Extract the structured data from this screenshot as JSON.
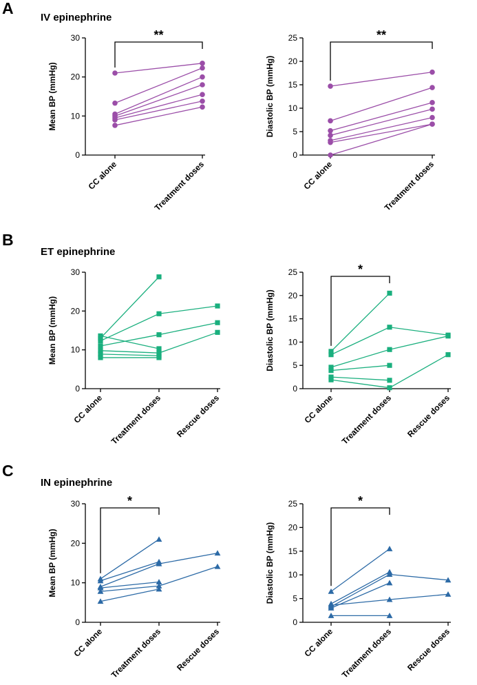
{
  "panels": [
    {
      "letter": "A",
      "title": "IV epinephrine"
    },
    {
      "letter": "B",
      "title": "ET epinephrine"
    },
    {
      "letter": "C",
      "title": "IN epinephrine"
    }
  ],
  "chart_data": [
    {
      "type": "line",
      "panel": "A",
      "title": "IV epinephrine",
      "xlabel": "",
      "ylabel": "Mean BP (mmHg)",
      "ylim": [
        0,
        30
      ],
      "yticks": [
        0,
        10,
        20,
        30
      ],
      "categories": [
        "CC alone",
        "Treatment doses"
      ],
      "color": "#9b4ea8",
      "marker": "circle",
      "series": [
        {
          "name": "1",
          "values": [
            21.0,
            23.5
          ]
        },
        {
          "name": "2",
          "values": [
            13.3,
            22.3
          ]
        },
        {
          "name": "3",
          "values": [
            10.5,
            20.0
          ]
        },
        {
          "name": "4",
          "values": [
            10.0,
            18.0
          ]
        },
        {
          "name": "5",
          "values": [
            9.5,
            15.5
          ]
        },
        {
          "name": "6",
          "values": [
            9.0,
            13.8
          ]
        },
        {
          "name": "7",
          "values": [
            7.6,
            12.3
          ]
        }
      ],
      "significance": {
        "label": "**",
        "from": 0,
        "to": 1
      }
    },
    {
      "type": "line",
      "panel": "A",
      "title": "IV epinephrine",
      "xlabel": "",
      "ylabel": "Diastolic BP (mmHg)",
      "ylim": [
        0,
        25
      ],
      "yticks": [
        0,
        5,
        10,
        15,
        20,
        25
      ],
      "categories": [
        "CC alone",
        "Treatment doses"
      ],
      "color": "#9b4ea8",
      "marker": "circle",
      "series": [
        {
          "name": "1",
          "values": [
            14.7,
            17.7
          ]
        },
        {
          "name": "2",
          "values": [
            7.3,
            14.4
          ]
        },
        {
          "name": "3",
          "values": [
            5.2,
            11.2
          ]
        },
        {
          "name": "4",
          "values": [
            4.2,
            9.8
          ]
        },
        {
          "name": "5",
          "values": [
            3.1,
            8.0
          ]
        },
        {
          "name": "6",
          "values": [
            2.7,
            6.6
          ]
        },
        {
          "name": "7",
          "values": [
            0.0,
            6.6
          ]
        }
      ],
      "significance": {
        "label": "**",
        "from": 0,
        "to": 1
      }
    },
    {
      "type": "line",
      "panel": "B",
      "title": "ET epinephrine",
      "xlabel": "",
      "ylabel": "Mean BP (mmHg)",
      "ylim": [
        0,
        30
      ],
      "yticks": [
        0,
        10,
        20,
        30
      ],
      "categories": [
        "CC alone",
        "Treatment doses",
        "Rescue doses"
      ],
      "color": "#1aaf7e",
      "marker": "square",
      "series": [
        {
          "name": "1",
          "values": [
            13.0,
            28.8,
            null
          ]
        },
        {
          "name": "2",
          "values": [
            12.3,
            19.3,
            21.3
          ]
        },
        {
          "name": "3",
          "values": [
            11.0,
            13.9,
            17.0
          ]
        },
        {
          "name": "4",
          "values": [
            13.6,
            10.3,
            null
          ]
        },
        {
          "name": "5",
          "values": [
            9.8,
            9.2,
            14.5
          ]
        },
        {
          "name": "6",
          "values": [
            8.9,
            8.5,
            null
          ]
        },
        {
          "name": "7",
          "values": [
            8.0,
            8.0,
            null
          ]
        }
      ],
      "significance": null
    },
    {
      "type": "line",
      "panel": "B",
      "title": "ET epinephrine",
      "xlabel": "",
      "ylabel": "Diastolic BP (mmHg)",
      "ylim": [
        0,
        25
      ],
      "yticks": [
        0,
        5,
        10,
        15,
        20,
        25
      ],
      "categories": [
        "CC alone",
        "Treatment doses",
        "Rescue doses"
      ],
      "color": "#1aaf7e",
      "marker": "square",
      "series": [
        {
          "name": "1",
          "values": [
            8.0,
            20.5,
            null
          ]
        },
        {
          "name": "2",
          "values": [
            7.3,
            13.2,
            11.5
          ]
        },
        {
          "name": "3",
          "values": [
            4.6,
            8.4,
            11.3
          ]
        },
        {
          "name": "4",
          "values": [
            3.9,
            5.0,
            null
          ]
        },
        {
          "name": "5",
          "values": [
            2.5,
            1.8,
            null
          ]
        },
        {
          "name": "6",
          "values": [
            1.9,
            0.2,
            7.3
          ]
        }
      ],
      "significance": {
        "label": "*",
        "from": 0,
        "to": 1
      }
    },
    {
      "type": "line",
      "panel": "C",
      "title": "IN epinephrine",
      "xlabel": "",
      "ylabel": "Mean BP (mmHg)",
      "ylim": [
        0,
        30
      ],
      "yticks": [
        0,
        10,
        20,
        30
      ],
      "categories": [
        "CC alone",
        "Treatment doses",
        "Rescue doses"
      ],
      "color": "#2c6aa6",
      "marker": "triangle",
      "series": [
        {
          "name": "1",
          "values": [
            11.0,
            21.0,
            null
          ]
        },
        {
          "name": "2",
          "values": [
            10.5,
            15.3,
            null
          ]
        },
        {
          "name": "3",
          "values": [
            9.0,
            14.8,
            17.5
          ]
        },
        {
          "name": "4",
          "values": [
            8.7,
            10.2,
            null
          ]
        },
        {
          "name": "5",
          "values": [
            7.8,
            9.2,
            14.1
          ]
        },
        {
          "name": "6",
          "values": [
            5.3,
            8.4,
            null
          ]
        }
      ],
      "significance": {
        "label": "*",
        "from": 0,
        "to": 1
      }
    },
    {
      "type": "line",
      "panel": "C",
      "title": "IN epinephrine",
      "xlabel": "",
      "ylabel": "Diastolic BP (mmHg)",
      "ylim": [
        0,
        25
      ],
      "yticks": [
        0,
        5,
        10,
        15,
        20,
        25
      ],
      "categories": [
        "CC alone",
        "Treatment doses",
        "Rescue doses"
      ],
      "color": "#2c6aa6",
      "marker": "triangle",
      "series": [
        {
          "name": "1",
          "values": [
            6.5,
            15.5,
            null
          ]
        },
        {
          "name": "2",
          "values": [
            3.9,
            10.6,
            null
          ]
        },
        {
          "name": "3",
          "values": [
            3.3,
            10.1,
            8.9
          ]
        },
        {
          "name": "4",
          "values": [
            3.0,
            8.3,
            null
          ]
        },
        {
          "name": "5",
          "values": [
            3.6,
            4.8,
            5.9
          ]
        },
        {
          "name": "6",
          "values": [
            1.4,
            1.4,
            null
          ]
        }
      ],
      "significance": {
        "label": "*",
        "from": 0,
        "to": 1
      }
    }
  ]
}
